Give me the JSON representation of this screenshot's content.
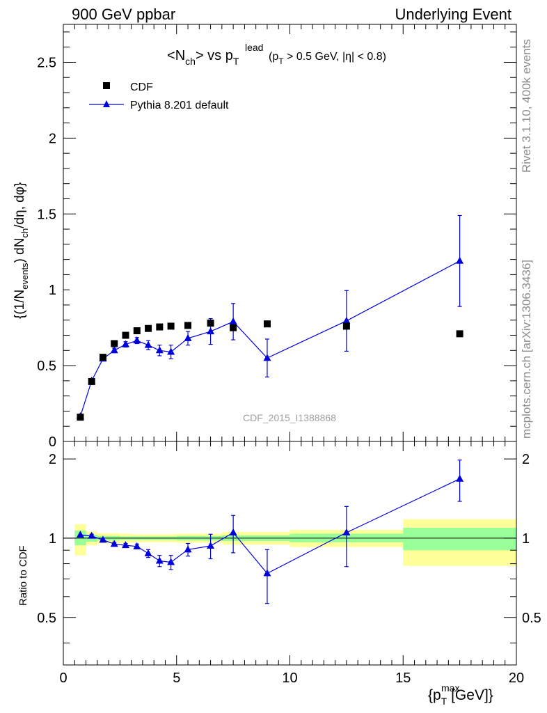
{
  "header": {
    "left": "900 GeV ppbar",
    "right": "Underlying Event"
  },
  "side_labels": {
    "rivet": "Rivet 3.1.10,  400k events",
    "mcplots": "mcplots.cern.ch [arXiv:1306.3436]"
  },
  "chart_data": [
    {
      "panel": "main",
      "type": "scatter",
      "title": {
        "n": "N",
        "ch": "ch",
        "vs": "> vs p",
        "lead": "lead",
        "t": "T",
        "cut_open": "(p",
        "cut_t": "T",
        "cut_rest": " > 0.5 GeV, |η| < 0.8)"
      },
      "watermark": "CDF_2015_I1388868",
      "ylabel": {
        "a": "{(1/N",
        "events": "events",
        "b": ") dN",
        "ch": "ch",
        "c": "/dη, dφ}"
      },
      "ylim": [
        0,
        2.75
      ],
      "xlim": [
        0,
        20
      ],
      "yticks": [
        0,
        0.5,
        1,
        1.5,
        2,
        2.5
      ],
      "ytick_labels": [
        "0",
        "0.5",
        "1",
        "1.5",
        "2",
        "2.5"
      ],
      "legend": {
        "position": "top-left",
        "entries": [
          "CDF",
          "Pythia 8.201 default"
        ]
      },
      "series": [
        {
          "name": "CDF",
          "style": "square",
          "color": "#000000",
          "x": [
            0.75,
            1.25,
            1.75,
            2.25,
            2.75,
            3.25,
            3.75,
            4.25,
            4.75,
            5.5,
            6.5,
            7.5,
            9.0,
            12.5,
            17.5
          ],
          "y": [
            0.16,
            0.395,
            0.555,
            0.645,
            0.7,
            0.73,
            0.745,
            0.755,
            0.76,
            0.765,
            0.78,
            0.75,
            0.775,
            0.76,
            0.71
          ],
          "yerr": [
            0.005,
            0.008,
            0.008,
            0.008,
            0.008,
            0.008,
            0.008,
            0.008,
            0.008,
            0.01,
            0.01,
            0.01,
            0.01,
            0.01,
            0.01
          ]
        },
        {
          "name": "Pythia 8.201 default",
          "style": "triangle-line",
          "color": "#0000dd",
          "x": [
            0.75,
            1.25,
            1.75,
            2.25,
            2.75,
            3.25,
            3.75,
            4.25,
            4.75,
            5.5,
            6.5,
            7.5,
            9.0,
            12.5,
            17.5
          ],
          "y": [
            0.165,
            0.4,
            0.545,
            0.6,
            0.64,
            0.665,
            0.635,
            0.6,
            0.59,
            0.68,
            0.725,
            0.79,
            0.55,
            0.795,
            1.19
          ],
          "yerr": [
            0.005,
            0.008,
            0.01,
            0.015,
            0.018,
            0.02,
            0.03,
            0.035,
            0.045,
            0.045,
            0.085,
            0.12,
            0.125,
            0.2,
            0.3
          ]
        }
      ]
    },
    {
      "panel": "ratio",
      "type": "line",
      "ylabel": "Ratio to CDF",
      "xlabel": {
        "open": "{p",
        "max": "max",
        "t": "T",
        "unit": " [GeV]}"
      },
      "ylim": [
        0.33,
        2.33
      ],
      "xlim": [
        0,
        20
      ],
      "yticks": [
        0.5,
        1,
        2
      ],
      "ytick_labels": [
        "0.5",
        "1",
        "2"
      ],
      "xticks": [
        0,
        5,
        10,
        15,
        20
      ],
      "xtick_labels": [
        "0",
        "5",
        "10",
        "15",
        "20"
      ],
      "reference_line": 1,
      "uncertainty_bands": {
        "bins": [
          [
            0.5,
            1.0
          ],
          [
            1.0,
            1.5
          ],
          [
            1.5,
            2.0
          ],
          [
            2.0,
            2.5
          ],
          [
            2.5,
            3.0
          ],
          [
            3.0,
            3.5
          ],
          [
            3.5,
            4.0
          ],
          [
            4.0,
            4.5
          ],
          [
            4.5,
            5.0
          ],
          [
            5.0,
            6.0
          ],
          [
            6.0,
            7.0
          ],
          [
            7.0,
            8.0
          ],
          [
            8.0,
            10.0
          ],
          [
            10.0,
            15.0
          ],
          [
            15.0,
            20.0
          ]
        ],
        "inner_color": "#99ff99",
        "outer_color": "#ffff99",
        "inner": [
          [
            0.94,
            1.07
          ],
          [
            0.97,
            1.03
          ],
          [
            0.98,
            1.02
          ],
          [
            0.98,
            1.02
          ],
          [
            0.985,
            1.015
          ],
          [
            0.985,
            1.015
          ],
          [
            0.985,
            1.015
          ],
          [
            0.985,
            1.015
          ],
          [
            0.985,
            1.015
          ],
          [
            0.98,
            1.02
          ],
          [
            0.98,
            1.02
          ],
          [
            0.975,
            1.025
          ],
          [
            0.975,
            1.025
          ],
          [
            0.965,
            1.04
          ],
          [
            0.9,
            1.095
          ]
        ],
        "outer": [
          [
            0.86,
            1.13
          ],
          [
            0.94,
            1.06
          ],
          [
            0.955,
            1.045
          ],
          [
            0.955,
            1.045
          ],
          [
            0.96,
            1.04
          ],
          [
            0.965,
            1.035
          ],
          [
            0.965,
            1.035
          ],
          [
            0.965,
            1.035
          ],
          [
            0.965,
            1.035
          ],
          [
            0.96,
            1.04
          ],
          [
            0.96,
            1.04
          ],
          [
            0.945,
            1.055
          ],
          [
            0.945,
            1.055
          ],
          [
            0.925,
            1.075
          ],
          [
            0.785,
            1.18
          ]
        ]
      },
      "series": [
        {
          "name": "Pythia 8.201 default",
          "style": "triangle-line",
          "color": "#0000dd",
          "x": [
            0.75,
            1.25,
            1.75,
            2.25,
            2.75,
            3.25,
            3.75,
            4.25,
            4.75,
            5.5,
            6.5,
            7.5,
            9.0,
            12.5,
            17.5
          ],
          "y": [
            1.03,
            1.02,
            0.985,
            0.95,
            0.94,
            0.93,
            0.875,
            0.82,
            0.81,
            0.905,
            0.935,
            1.05,
            0.735,
            1.05,
            1.68
          ],
          "yerr": [
            0.01,
            0.015,
            0.015,
            0.015,
            0.015,
            0.02,
            0.03,
            0.04,
            0.05,
            0.05,
            0.1,
            0.17,
            0.17,
            0.27,
            0.3
          ]
        }
      ]
    }
  ]
}
